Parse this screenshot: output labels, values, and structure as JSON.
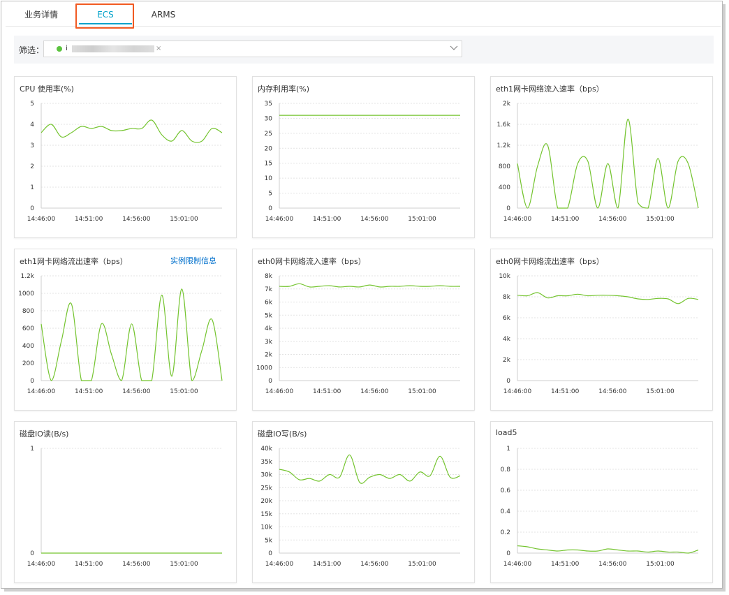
{
  "tabs": [
    {
      "label": "业务详情",
      "active": false
    },
    {
      "label": "ECS",
      "active": true
    },
    {
      "label": "ARMS",
      "active": false
    }
  ],
  "filter": {
    "label": "筛选：",
    "chip_prefix": "i",
    "chip_remove": "×"
  },
  "colors": {
    "line": "#74c42f",
    "accent": "#00a2ca",
    "highlight": "#f15a22",
    "link": "#0070cc"
  },
  "charts": [
    {
      "title": "CPU 使用率(%)",
      "chart_data": {
        "type": "line",
        "title": "CPU 使用率(%)",
        "x_ticks": [
          "14:46:00",
          "14:51:00",
          "14:56:00",
          "15:01:00"
        ],
        "y_ticks": [
          "0",
          "1",
          "2",
          "3",
          "4",
          "5"
        ],
        "ylim": [
          0,
          5
        ],
        "x_range": [
          0,
          19
        ],
        "series": [
          {
            "values": [
              3.6,
              4.0,
              3.4,
              3.6,
              3.9,
              3.8,
              3.9,
              3.7,
              3.7,
              3.8,
              3.8,
              4.2,
              3.5,
              3.2,
              3.7,
              3.2,
              3.2,
              3.8,
              3.6
            ]
          }
        ]
      }
    },
    {
      "title": "内存利用率(%)",
      "chart_data": {
        "type": "line",
        "title": "内存利用率(%)",
        "x_ticks": [
          "14:46:00",
          "14:51:00",
          "14:56:00",
          "15:01:00"
        ],
        "y_ticks": [
          "0",
          "5",
          "10",
          "15",
          "20",
          "25",
          "30",
          "35"
        ],
        "ylim": [
          0,
          35
        ],
        "x_range": [
          0,
          19
        ],
        "series": [
          {
            "values": [
              31,
              31,
              31,
              31,
              31,
              31,
              31,
              31,
              31,
              31,
              31,
              31,
              31,
              31,
              31,
              31,
              31,
              31,
              31
            ]
          }
        ]
      }
    },
    {
      "title": "eth1网卡网络流入速率（bps）",
      "chart_data": {
        "type": "line",
        "title": "eth1网卡网络流入速率（bps）",
        "x_ticks": [
          "14:46:00",
          "14:51:00",
          "14:56:00",
          "15:01:00"
        ],
        "y_ticks": [
          "0",
          "400",
          "800",
          "1.2k",
          "1.6k",
          "2k"
        ],
        "ylim": [
          0,
          2000
        ],
        "x_range": [
          0,
          19
        ],
        "series": [
          {
            "values": [
              850,
              0,
              800,
              1200,
              0,
              0,
              850,
              900,
              0,
              850,
              0,
              1700,
              100,
              0,
              950,
              0,
              900,
              850,
              0
            ]
          }
        ]
      }
    },
    {
      "title": "eth1网卡网络流出速率（bps）",
      "link": "实例限制信息",
      "chart_data": {
        "type": "line",
        "title": "eth1网卡网络流出速率（bps）",
        "x_ticks": [
          "14:46:00",
          "14:51:00",
          "14:56:00",
          "15:01:00"
        ],
        "y_ticks": [
          "0",
          "200",
          "400",
          "600",
          "800",
          "1000",
          "1.2k"
        ],
        "ylim": [
          0,
          1200
        ],
        "x_range": [
          0,
          19
        ],
        "series": [
          {
            "values": [
              650,
              0,
              450,
              880,
              0,
              0,
              650,
              300,
              0,
              650,
              0,
              0,
              980,
              50,
              1050,
              0,
              350,
              700,
              0
            ]
          }
        ]
      }
    },
    {
      "title": "eth0网卡网络流入速率（bps）",
      "chart_data": {
        "type": "line",
        "title": "eth0网卡网络流入速率（bps）",
        "x_ticks": [
          "14:46:00",
          "14:51:00",
          "14:56:00",
          "15:01:00"
        ],
        "y_ticks": [
          "0",
          "1000",
          "2k",
          "3k",
          "4k",
          "5k",
          "6k",
          "7k",
          "8k"
        ],
        "ylim": [
          0,
          8000
        ],
        "x_range": [
          0,
          19
        ],
        "series": [
          {
            "values": [
              7200,
              7200,
              7400,
              7150,
              7200,
              7250,
              7150,
              7200,
              7150,
              7300,
              7150,
              7200,
              7200,
              7250,
              7200,
              7200,
              7250,
              7200,
              7200
            ]
          }
        ]
      }
    },
    {
      "title": "eth0网卡网络流出速率（bps）",
      "chart_data": {
        "type": "line",
        "title": "eth0网卡网络流出速率（bps）",
        "x_ticks": [
          "14:46:00",
          "14:51:00",
          "14:56:00",
          "15:01:00"
        ],
        "y_ticks": [
          "0",
          "2k",
          "4k",
          "6k",
          "8k",
          "10k"
        ],
        "ylim": [
          0,
          10000
        ],
        "x_range": [
          0,
          19
        ],
        "series": [
          {
            "values": [
              8150,
              8100,
              8400,
              7900,
              8100,
              8100,
              8250,
              8100,
              8150,
              8150,
              8100,
              8000,
              7800,
              7750,
              7850,
              7800,
              7350,
              7850,
              7750
            ]
          }
        ]
      }
    },
    {
      "title": "磁盘IO读(B/s)",
      "chart_data": {
        "type": "line",
        "title": "磁盘IO读(B/s)",
        "x_ticks": [
          "14:46:00",
          "14:51:00",
          "14:56:00",
          "15:01:00"
        ],
        "y_ticks": [
          "0",
          "1"
        ],
        "ylim": [
          0,
          1
        ],
        "x_range": [
          0,
          19
        ],
        "series": [
          {
            "values": [
              0,
              0,
              0,
              0,
              0,
              0,
              0,
              0,
              0,
              0,
              0,
              0,
              0,
              0,
              0,
              0,
              0,
              0,
              0
            ]
          }
        ]
      }
    },
    {
      "title": "磁盘IO写(B/s)",
      "chart_data": {
        "type": "line",
        "title": "磁盘IO写(B/s)",
        "x_ticks": [
          "14:46:00",
          "14:51:00",
          "14:56:00",
          "15:01:00"
        ],
        "y_ticks": [
          "0",
          "5k",
          "10k",
          "15k",
          "20k",
          "25k",
          "30k",
          "35k",
          "40k"
        ],
        "ylim": [
          0,
          40000
        ],
        "x_range": [
          0,
          19
        ],
        "series": [
          {
            "values": [
              32000,
              31000,
              28000,
              28500,
              27500,
              30000,
              29000,
              37500,
              27000,
              29000,
              30000,
              28500,
              30000,
              27500,
              31000,
              29500,
              37000,
              29000,
              29500
            ]
          }
        ]
      }
    },
    {
      "title": "load5",
      "chart_data": {
        "type": "line",
        "title": "load5",
        "x_ticks": [
          "14:46:00",
          "14:51:00",
          "14:56:00",
          "15:01:00"
        ],
        "y_ticks": [
          "0",
          "0.2",
          "0.4",
          "0.6",
          "0.8",
          "1"
        ],
        "ylim": [
          0,
          1
        ],
        "x_range": [
          0,
          19
        ],
        "series": [
          {
            "values": [
              0.07,
              0.06,
              0.04,
              0.03,
              0.02,
              0.03,
              0.03,
              0.02,
              0.02,
              0.04,
              0.03,
              0.02,
              0.02,
              0.01,
              0.02,
              0.01,
              0.01,
              0.0,
              0.03
            ]
          }
        ]
      }
    }
  ]
}
